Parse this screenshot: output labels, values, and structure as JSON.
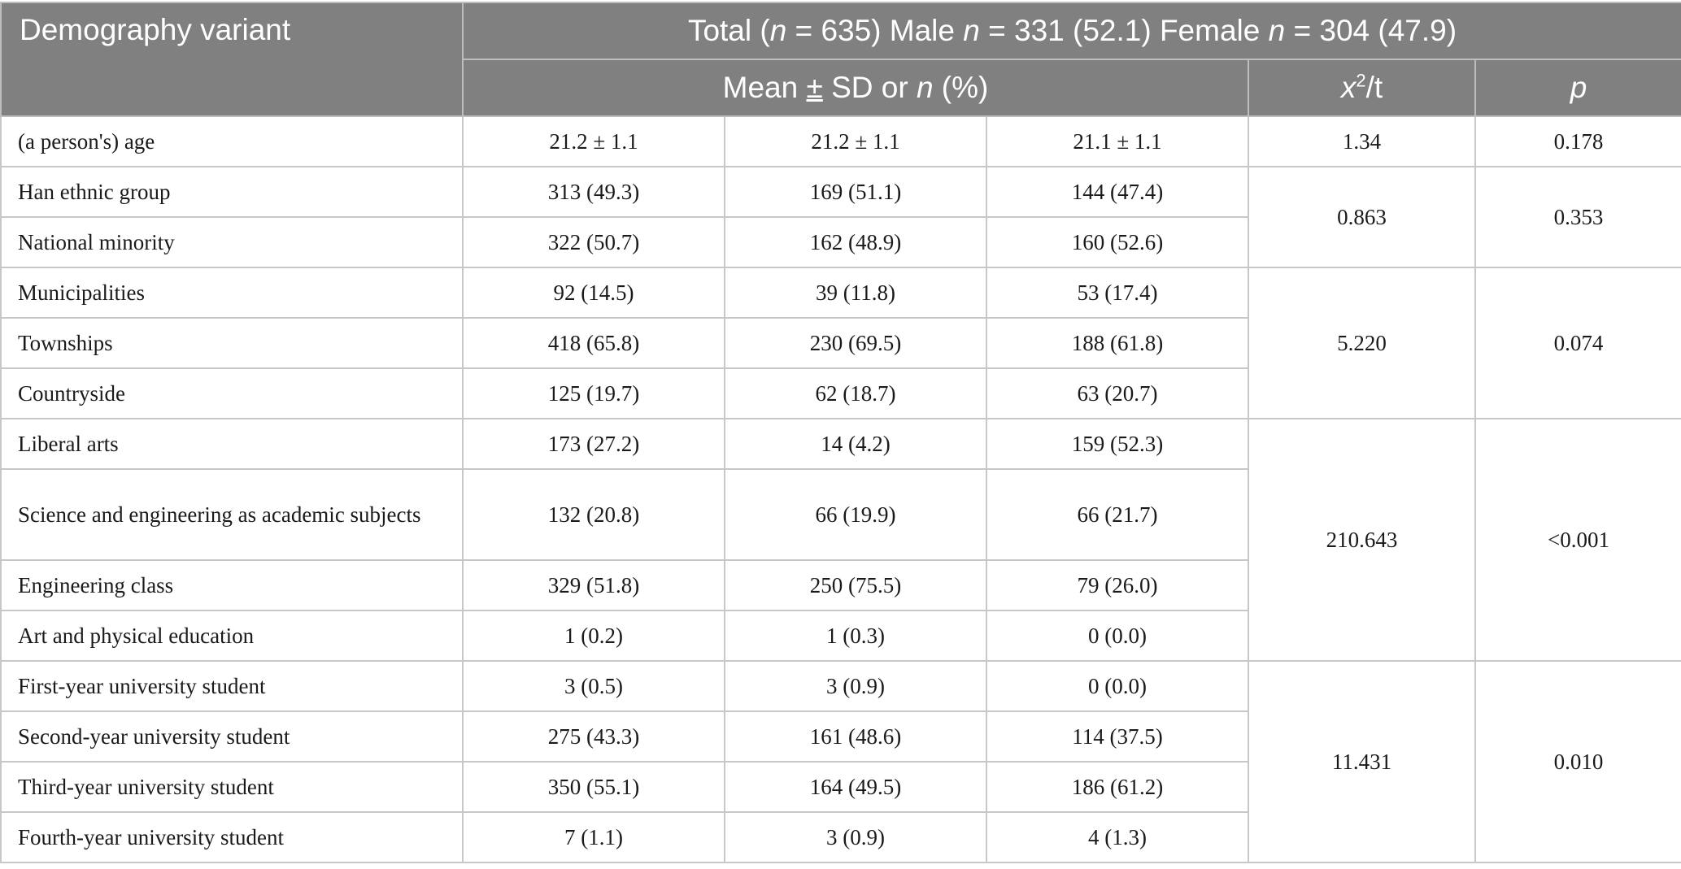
{
  "header": {
    "col1": "Demography variant",
    "top": {
      "total_label": "Total (",
      "n": "n",
      "total_value": " = 635) Male ",
      "male_value": " = 331 (52.1) Female ",
      "female_value": " = 304 (47.9)"
    },
    "sub": {
      "mean_pre": "Mean ",
      "pm": "±",
      "mean_mid": " SD or ",
      "mean_post": " (%)",
      "stat_x": "x",
      "stat_sup": "2",
      "stat_t": "/t",
      "p": "p"
    }
  },
  "rows": [
    {
      "label": "(a person's) age",
      "total": "21.2 ± 1.1",
      "male": "21.2 ± 1.1",
      "female": "21.1 ± 1.1"
    },
    {
      "label": "Han ethnic group",
      "total": "313 (49.3)",
      "male": "169 (51.1)",
      "female": "144 (47.4)"
    },
    {
      "label": "National minority",
      "total": "322 (50.7)",
      "male": "162 (48.9)",
      "female": "160 (52.6)"
    },
    {
      "label": "Municipalities",
      "total": "92 (14.5)",
      "male": "39 (11.8)",
      "female": "53 (17.4)"
    },
    {
      "label": "Townships",
      "total": "418 (65.8)",
      "male": "230 (69.5)",
      "female": "188 (61.8)"
    },
    {
      "label": "Countryside",
      "total": "125 (19.7)",
      "male": "62 (18.7)",
      "female": "63 (20.7)"
    },
    {
      "label": "Liberal arts",
      "total": "173 (27.2)",
      "male": "14 (4.2)",
      "female": "159 (52.3)"
    },
    {
      "label": "Science and engineering as academic subjects",
      "total": "132 (20.8)",
      "male": "66 (19.9)",
      "female": "66 (21.7)"
    },
    {
      "label": "Engineering class",
      "total": "329 (51.8)",
      "male": "250 (75.5)",
      "female": "79 (26.0)"
    },
    {
      "label": "Art and physical education",
      "total": "1 (0.2)",
      "male": "1 (0.3)",
      "female": "0 (0.0)"
    },
    {
      "label": "First-year university student",
      "total": "3 (0.5)",
      "male": "3 (0.9)",
      "female": "0 (0.0)"
    },
    {
      "label": "Second-year university student",
      "total": "275 (43.3)",
      "male": "161 (48.6)",
      "female": "114 (37.5)"
    },
    {
      "label": "Third-year university student",
      "total": "350 (55.1)",
      "male": "164 (49.5)",
      "female": "186 (61.2)"
    },
    {
      "label": "Fourth-year university student",
      "total": "7 (1.1)",
      "male": "3 (0.9)",
      "female": "4 (1.3)"
    }
  ],
  "stats": {
    "age": {
      "stat": "1.34",
      "p": "0.178"
    },
    "ethnicity": {
      "stat": "0.863",
      "p": "0.353"
    },
    "residence": {
      "stat": "5.220",
      "p": "0.074"
    },
    "major": {
      "stat": "210.643",
      "p": "<0.001"
    },
    "grade": {
      "stat": "11.431",
      "p": "0.010"
    }
  }
}
